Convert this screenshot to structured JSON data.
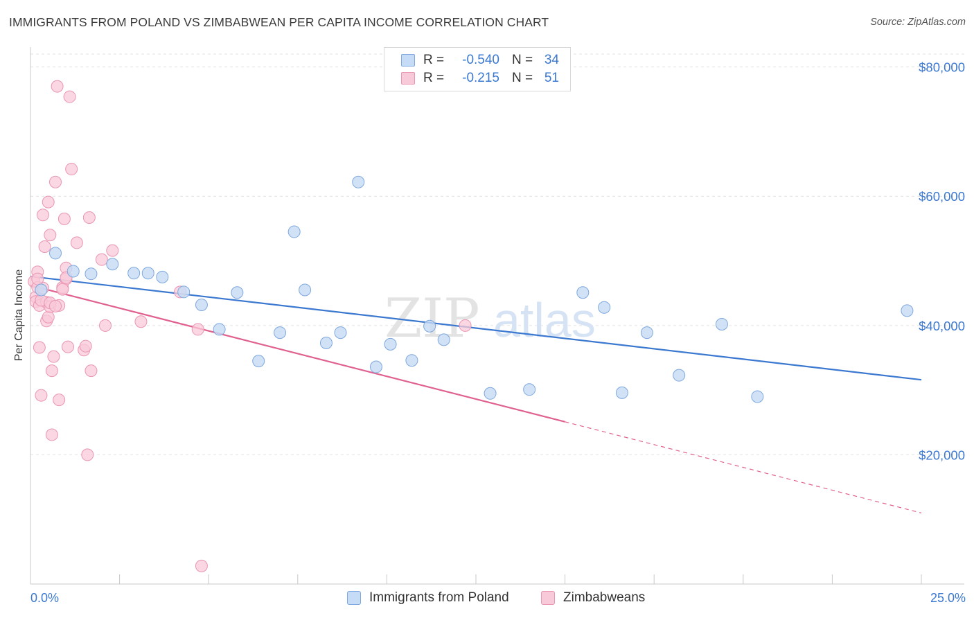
{
  "header": {
    "title": "IMMIGRANTS FROM POLAND VS ZIMBABWEAN PER CAPITA INCOME CORRELATION CHART",
    "source": "Source: ZipAtlas.com"
  },
  "watermark": {
    "zip": "ZIP",
    "atlas": "atlas"
  },
  "legend": {
    "rows": [
      {
        "r_label": "R =",
        "r_value": "-0.540",
        "n_label": "N =",
        "n_value": "34"
      },
      {
        "r_label": "R =",
        "r_value": "-0.215",
        "n_label": "N =",
        "n_value": "51"
      }
    ]
  },
  "colors": {
    "blue": "#3b78d0",
    "blue_fill": "#c6dbf5",
    "blue_edge": "#7ea8de",
    "pink": "#e0618f",
    "pink_fill": "#f8c9d8",
    "pink_edge": "#ea95b3",
    "grid": "#e2e2e2"
  },
  "chart_data": {
    "type": "scatter",
    "title": "IMMIGRANTS FROM POLAND VS ZIMBABWEAN PER CAPITA INCOME CORRELATION CHART",
    "xlabel": "",
    "ylabel": "Per Capita Income",
    "xlim": [
      0,
      25
    ],
    "ylim": [
      0,
      82000
    ],
    "x_tick_labels": [
      "0.0%",
      "25.0%"
    ],
    "y_ticks": [
      20000,
      40000,
      60000,
      80000
    ],
    "y_tick_labels": [
      "$20,000",
      "$40,000",
      "$60,000",
      "$80,000"
    ],
    "grid": true,
    "legend_position": "bottom",
    "series": [
      {
        "name": "Immigrants from Poland",
        "color": "#3b78d0",
        "points": [
          [
            0.3,
            45500
          ],
          [
            0.7,
            51200
          ],
          [
            1.2,
            48400
          ],
          [
            1.7,
            48000
          ],
          [
            2.3,
            49500
          ],
          [
            2.9,
            48100
          ],
          [
            3.3,
            48100
          ],
          [
            3.7,
            47500
          ],
          [
            4.3,
            45200
          ],
          [
            4.8,
            43200
          ],
          [
            5.3,
            39400
          ],
          [
            5.8,
            45100
          ],
          [
            6.4,
            34500
          ],
          [
            7.0,
            38900
          ],
          [
            7.4,
            54500
          ],
          [
            7.7,
            45500
          ],
          [
            8.3,
            37300
          ],
          [
            8.7,
            38900
          ],
          [
            9.2,
            62200
          ],
          [
            9.7,
            33600
          ],
          [
            10.1,
            37100
          ],
          [
            10.7,
            34600
          ],
          [
            11.2,
            39900
          ],
          [
            11.6,
            37800
          ],
          [
            12.9,
            29500
          ],
          [
            14.0,
            30100
          ],
          [
            15.5,
            45100
          ],
          [
            16.1,
            42800
          ],
          [
            16.6,
            29600
          ],
          [
            17.3,
            38900
          ],
          [
            18.2,
            32300
          ],
          [
            19.4,
            40200
          ],
          [
            20.4,
            29000
          ],
          [
            24.6,
            42300
          ]
        ],
        "trend": {
          "x": [
            0,
            25
          ],
          "y": [
            47600,
            31600
          ]
        }
      },
      {
        "name": "Zimbabweans",
        "color": "#e0618f",
        "points": [
          [
            0.1,
            46800
          ],
          [
            0.15,
            44400
          ],
          [
            0.15,
            43700
          ],
          [
            0.2,
            45900
          ],
          [
            0.2,
            48300
          ],
          [
            0.25,
            36600
          ],
          [
            0.25,
            43100
          ],
          [
            0.3,
            29200
          ],
          [
            0.35,
            57100
          ],
          [
            0.4,
            52200
          ],
          [
            0.45,
            43600
          ],
          [
            0.45,
            40700
          ],
          [
            0.5,
            41300
          ],
          [
            0.5,
            59100
          ],
          [
            0.55,
            54000
          ],
          [
            0.55,
            42900
          ],
          [
            0.6,
            33000
          ],
          [
            0.6,
            23100
          ],
          [
            0.65,
            35200
          ],
          [
            0.7,
            62200
          ],
          [
            0.75,
            77000
          ],
          [
            0.8,
            28500
          ],
          [
            0.8,
            43100
          ],
          [
            0.9,
            45900
          ],
          [
            0.95,
            56500
          ],
          [
            1.0,
            48900
          ],
          [
            1.0,
            47200
          ],
          [
            1.05,
            36700
          ],
          [
            1.1,
            75400
          ],
          [
            1.15,
            64200
          ],
          [
            1.3,
            52800
          ],
          [
            1.5,
            36200
          ],
          [
            1.55,
            36800
          ],
          [
            1.6,
            20000
          ],
          [
            1.65,
            56700
          ],
          [
            1.7,
            33000
          ],
          [
            2.0,
            50200
          ],
          [
            2.1,
            40000
          ],
          [
            2.3,
            51600
          ],
          [
            3.1,
            40600
          ],
          [
            4.2,
            45200
          ],
          [
            4.7,
            39400
          ],
          [
            4.8,
            2800
          ],
          [
            12.2,
            40000
          ],
          [
            0.3,
            43900
          ],
          [
            0.35,
            45800
          ],
          [
            0.2,
            47200
          ],
          [
            0.55,
            43500
          ],
          [
            0.7,
            43000
          ],
          [
            0.9,
            45600
          ],
          [
            1.0,
            47400
          ]
        ],
        "trend": {
          "x": [
            0,
            15
          ],
          "y": [
            46200,
            25100
          ]
        },
        "trend_extension": {
          "x": [
            15,
            25
          ],
          "y": [
            25100,
            11000
          ]
        }
      }
    ]
  }
}
